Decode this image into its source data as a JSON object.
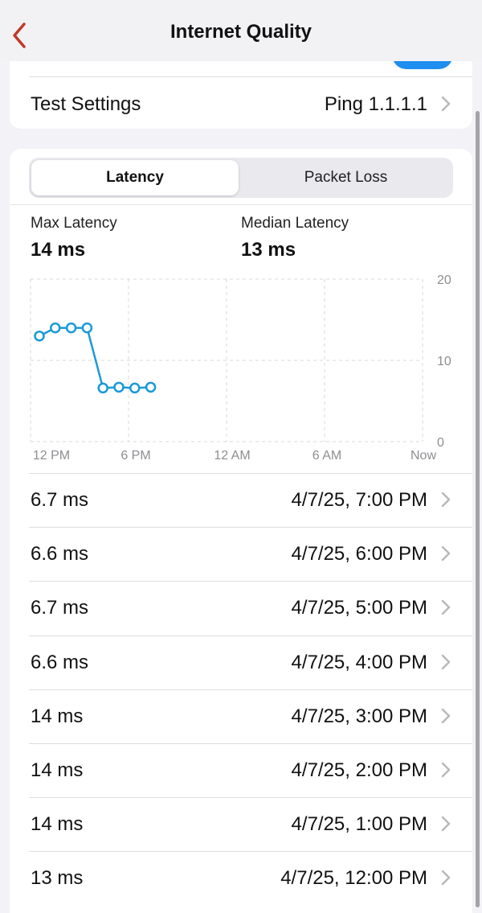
{
  "nav": {
    "title": "Internet Quality"
  },
  "settings": {
    "test_label": "Test Settings",
    "test_value": "Ping 1.1.1.1"
  },
  "tabs": [
    {
      "label": "Latency",
      "selected": true
    },
    {
      "label": "Packet Loss",
      "selected": false
    }
  ],
  "stats": {
    "max_label": "Max Latency",
    "max_value": "14 ms",
    "median_label": "Median Latency",
    "median_value": "13 ms"
  },
  "chart_data": {
    "type": "line",
    "x": [
      "12 PM",
      "1 PM",
      "2 PM",
      "3 PM",
      "4 PM",
      "5 PM",
      "6 PM",
      "7 PM"
    ],
    "series": [
      {
        "values": [
          13,
          14,
          14,
          14,
          6.6,
          6.7,
          6.6,
          6.7
        ]
      }
    ],
    "x_ticks": [
      "12 PM",
      "6 PM",
      "12 AM",
      "6 AM",
      "Now"
    ],
    "y_ticks": [
      "20",
      "10",
      "0"
    ],
    "ylim": [
      0,
      20
    ],
    "grid": true,
    "color": "#1a9ad6"
  },
  "rows": [
    {
      "value": "6.7 ms",
      "time": "4/7/25, 7:00 PM"
    },
    {
      "value": "6.6 ms",
      "time": "4/7/25, 6:00 PM"
    },
    {
      "value": "6.7 ms",
      "time": "4/7/25, 5:00 PM"
    },
    {
      "value": "6.6 ms",
      "time": "4/7/25, 4:00 PM"
    },
    {
      "value": "14 ms",
      "time": "4/7/25, 3:00 PM"
    },
    {
      "value": "14 ms",
      "time": "4/7/25, 2:00 PM"
    },
    {
      "value": "14 ms",
      "time": "4/7/25, 1:00 PM"
    },
    {
      "value": "13 ms",
      "time": "4/7/25, 12:00 PM"
    }
  ],
  "colors": {
    "accent_red": "#c0392b",
    "toggle_blue": "#1e8ef0"
  }
}
